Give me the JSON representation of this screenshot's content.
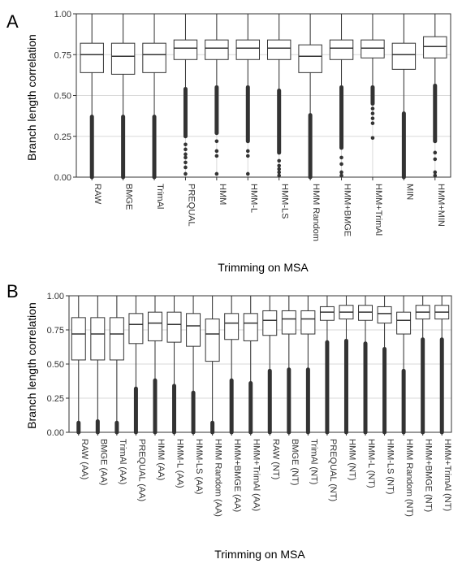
{
  "chart_data": [
    {
      "type": "box",
      "panel": "A",
      "xlabel": "Trimming on MSA",
      "ylabel": "Branch length correlation",
      "ylim": [
        0,
        1
      ],
      "yticks": [
        "0.00",
        "0.25",
        "0.50",
        "0.75",
        "1.00"
      ],
      "grid": true,
      "categories": [
        "RAW",
        "BMGE",
        "TrimAl",
        "PREQUAL",
        "HMM",
        "HMM-L",
        "HMM-LS",
        "HMM Random",
        "HMM+BMGE",
        "HMM+TrimAl",
        "MIN",
        "HMM+MIN"
      ],
      "boxes": [
        {
          "min": 0.0,
          "q1": 0.64,
          "median": 0.75,
          "q3": 0.82,
          "max": 1.0,
          "outlier_range": [
            0.0,
            0.37
          ],
          "outliers": []
        },
        {
          "min": 0.0,
          "q1": 0.63,
          "median": 0.74,
          "q3": 0.82,
          "max": 1.0,
          "outlier_range": [
            0.0,
            0.37
          ],
          "outliers": []
        },
        {
          "min": 0.0,
          "q1": 0.64,
          "median": 0.75,
          "q3": 0.82,
          "max": 1.0,
          "outlier_range": [
            0.0,
            0.37
          ],
          "outliers": []
        },
        {
          "min": 0.0,
          "q1": 0.72,
          "median": 0.79,
          "q3": 0.84,
          "max": 1.0,
          "outlier_range": [
            0.25,
            0.54
          ],
          "outliers": [
            0.2,
            0.17,
            0.14,
            0.12,
            0.09,
            0.06,
            0.02
          ]
        },
        {
          "min": 0.0,
          "q1": 0.72,
          "median": 0.79,
          "q3": 0.84,
          "max": 1.0,
          "outlier_range": [
            0.27,
            0.55
          ],
          "outliers": [
            0.22,
            0.16,
            0.13,
            0.02
          ]
        },
        {
          "min": 0.0,
          "q1": 0.72,
          "median": 0.79,
          "q3": 0.84,
          "max": 1.0,
          "outlier_range": [
            0.22,
            0.55
          ],
          "outliers": [
            0.16,
            0.13,
            0.02
          ]
        },
        {
          "min": 0.0,
          "q1": 0.72,
          "median": 0.79,
          "q3": 0.84,
          "max": 1.0,
          "outlier_range": [
            0.15,
            0.53
          ],
          "outliers": [
            0.1,
            0.07,
            0.05,
            0.03,
            0.01
          ]
        },
        {
          "min": 0.0,
          "q1": 0.64,
          "median": 0.74,
          "q3": 0.81,
          "max": 1.0,
          "outlier_range": [
            0.0,
            0.38
          ],
          "outliers": []
        },
        {
          "min": 0.0,
          "q1": 0.72,
          "median": 0.79,
          "q3": 0.84,
          "max": 1.0,
          "outlier_range": [
            0.18,
            0.55
          ],
          "outliers": [
            0.12,
            0.08,
            0.03,
            0.01
          ]
        },
        {
          "min": 0.25,
          "q1": 0.73,
          "median": 0.79,
          "q3": 0.84,
          "max": 1.0,
          "outlier_range": [
            0.45,
            0.55
          ],
          "outliers": [
            0.42,
            0.39,
            0.36,
            0.33,
            0.24
          ]
        },
        {
          "min": 0.0,
          "q1": 0.66,
          "median": 0.75,
          "q3": 0.82,
          "max": 1.0,
          "outlier_range": [
            0.0,
            0.39
          ],
          "outliers": []
        },
        {
          "min": 0.0,
          "q1": 0.73,
          "median": 0.8,
          "q3": 0.86,
          "max": 1.0,
          "outlier_range": [
            0.22,
            0.56
          ],
          "outliers": [
            0.15,
            0.11,
            0.03,
            0.01
          ]
        }
      ]
    },
    {
      "type": "box",
      "panel": "B",
      "xlabel": "Trimming on MSA",
      "ylabel": "Branch length correlation",
      "ylim": [
        0,
        1
      ],
      "yticks": [
        "0.00",
        "0.25",
        "0.50",
        "0.75",
        "1.00"
      ],
      "grid": true,
      "categories": [
        "RAW (AA)",
        "BMGE (AA)",
        "TrimAl (AA)",
        "PREQUAL (AA)",
        "HMM (AA)",
        "HMM-L (AA)",
        "HMM-LS (AA)",
        "HMM Random (AA)",
        "HMM+BMGE (AA)",
        "HMM+TrimAl (AA)",
        "RAW (NT)",
        "BMGE (NT)",
        "TrimAl (NT)",
        "PREQUAL (NT)",
        "HMM (NT)",
        "HMM-L (NT)",
        "HMM-LS (NT)",
        "HMM Random (NT)",
        "HMM+BMGE (NT)",
        "HMM+TrimAl (NT)"
      ],
      "boxes": [
        {
          "min": 0.0,
          "q1": 0.53,
          "median": 0.72,
          "q3": 0.84,
          "max": 1.0,
          "outlier_range": [
            0.0,
            0.07
          ],
          "outliers": []
        },
        {
          "min": 0.0,
          "q1": 0.53,
          "median": 0.72,
          "q3": 0.84,
          "max": 1.0,
          "outlier_range": [
            0.0,
            0.08
          ],
          "outliers": []
        },
        {
          "min": 0.0,
          "q1": 0.53,
          "median": 0.72,
          "q3": 0.84,
          "max": 1.0,
          "outlier_range": [
            0.0,
            0.07
          ],
          "outliers": []
        },
        {
          "min": 0.0,
          "q1": 0.65,
          "median": 0.79,
          "q3": 0.87,
          "max": 1.0,
          "outlier_range": [
            0.0,
            0.32
          ],
          "outliers": []
        },
        {
          "min": 0.0,
          "q1": 0.67,
          "median": 0.8,
          "q3": 0.88,
          "max": 1.0,
          "outlier_range": [
            0.0,
            0.38
          ],
          "outliers": []
        },
        {
          "min": 0.0,
          "q1": 0.66,
          "median": 0.79,
          "q3": 0.88,
          "max": 1.0,
          "outlier_range": [
            0.0,
            0.34
          ],
          "outliers": []
        },
        {
          "min": 0.0,
          "q1": 0.63,
          "median": 0.78,
          "q3": 0.87,
          "max": 1.0,
          "outlier_range": [
            0.0,
            0.29
          ],
          "outliers": []
        },
        {
          "min": 0.0,
          "q1": 0.52,
          "median": 0.72,
          "q3": 0.83,
          "max": 1.0,
          "outlier_range": [
            0.0,
            0.07
          ],
          "outliers": []
        },
        {
          "min": 0.0,
          "q1": 0.68,
          "median": 0.8,
          "q3": 0.87,
          "max": 1.0,
          "outlier_range": [
            0.0,
            0.38
          ],
          "outliers": []
        },
        {
          "min": 0.0,
          "q1": 0.67,
          "median": 0.8,
          "q3": 0.87,
          "max": 1.0,
          "outlier_range": [
            0.0,
            0.36
          ],
          "outliers": []
        },
        {
          "min": 0.0,
          "q1": 0.71,
          "median": 0.82,
          "q3": 0.89,
          "max": 1.0,
          "outlier_range": [
            0.0,
            0.45
          ],
          "outliers": []
        },
        {
          "min": 0.0,
          "q1": 0.72,
          "median": 0.83,
          "q3": 0.89,
          "max": 1.0,
          "outlier_range": [
            0.0,
            0.46
          ],
          "outliers": []
        },
        {
          "min": 0.0,
          "q1": 0.72,
          "median": 0.83,
          "q3": 0.89,
          "max": 1.0,
          "outlier_range": [
            0.0,
            0.46
          ],
          "outliers": []
        },
        {
          "min": 0.0,
          "q1": 0.82,
          "median": 0.88,
          "q3": 0.92,
          "max": 1.0,
          "outlier_range": [
            0.0,
            0.66
          ],
          "outliers": []
        },
        {
          "min": 0.0,
          "q1": 0.83,
          "median": 0.88,
          "q3": 0.93,
          "max": 1.0,
          "outlier_range": [
            0.0,
            0.67
          ],
          "outliers": []
        },
        {
          "min": 0.0,
          "q1": 0.82,
          "median": 0.88,
          "q3": 0.93,
          "max": 1.0,
          "outlier_range": [
            0.0,
            0.65
          ],
          "outliers": []
        },
        {
          "min": 0.0,
          "q1": 0.8,
          "median": 0.87,
          "q3": 0.92,
          "max": 1.0,
          "outlier_range": [
            0.0,
            0.61
          ],
          "outliers": []
        },
        {
          "min": 0.0,
          "q1": 0.72,
          "median": 0.82,
          "q3": 0.88,
          "max": 1.0,
          "outlier_range": [
            0.0,
            0.45
          ],
          "outliers": []
        },
        {
          "min": 0.0,
          "q1": 0.83,
          "median": 0.88,
          "q3": 0.93,
          "max": 1.0,
          "outlier_range": [
            0.0,
            0.68
          ],
          "outliers": []
        },
        {
          "min": 0.0,
          "q1": 0.83,
          "median": 0.88,
          "q3": 0.93,
          "max": 1.0,
          "outlier_range": [
            0.0,
            0.68
          ],
          "outliers": []
        }
      ]
    }
  ],
  "colors": {
    "box_fill": "#ffffff",
    "box_stroke": "#333333",
    "outlier": "#333333",
    "grid": "#d9d9d9",
    "panel_border": "#333333"
  }
}
